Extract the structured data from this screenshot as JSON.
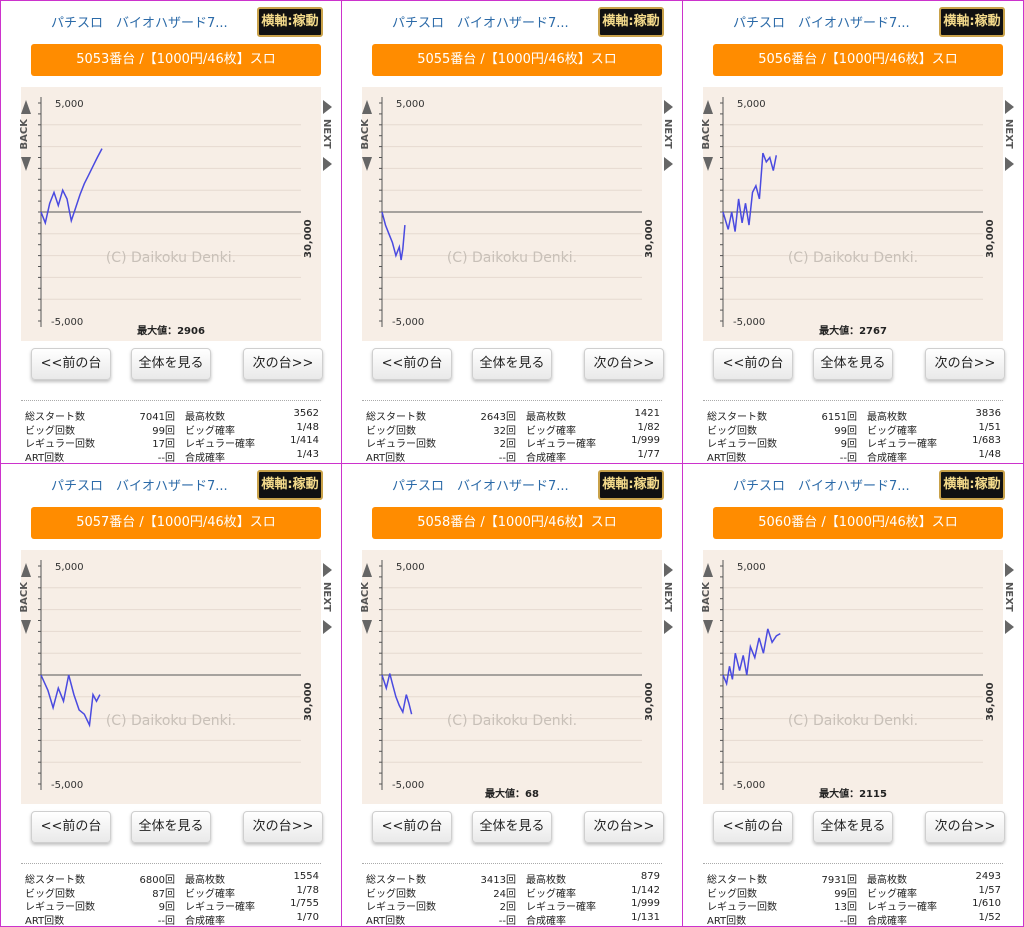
{
  "panels": [
    {
      "title": "パチスロ　バイオハザード7...",
      "axis_button": "横軸:稼動",
      "unit": "5053番台 /【1000円/46枚】スロ",
      "prev_button": "<<前の台",
      "all_button": "全体を見る",
      "next_button": "次の台>>",
      "back_label": "BACK",
      "next_label": "NEXT",
      "chart_data": {
        "type": "line",
        "ymax_label": "5,000",
        "ymin_label": "-5,000",
        "xmax_label": "30,000",
        "watermark": "(C) Daikoku Denki.",
        "max_label": "最大値：2906",
        "ylim": [
          -5000,
          5000
        ],
        "xlim": [
          0,
          30000
        ],
        "line_color": "#4a4ae0",
        "x": [
          0,
          500,
          1000,
          1500,
          2000,
          2500,
          3000,
          3200,
          3500,
          4000,
          4500,
          5000,
          5500,
          6000,
          6500,
          7041
        ],
        "y": [
          0,
          -500,
          400,
          900,
          300,
          1000,
          600,
          200,
          -400,
          200,
          800,
          1300,
          1700,
          2100,
          2500,
          2906
        ]
      },
      "stats": [
        [
          "総スタート数",
          "7041回",
          "最高枚数",
          "3562"
        ],
        [
          "ビッグ回数",
          "99回",
          "ビッグ確率",
          "1/48"
        ],
        [
          "レギュラー回数",
          "17回",
          "レギュラー確率",
          "1/414"
        ],
        [
          "ART回数",
          "--回",
          "合成確率",
          "1/43"
        ]
      ]
    },
    {
      "title": "パチスロ　バイオハザード7...",
      "axis_button": "横軸:稼動",
      "unit": "5055番台 /【1000円/46枚】スロ",
      "prev_button": "<<前の台",
      "all_button": "全体を見る",
      "next_button": "次の台>>",
      "back_label": "BACK",
      "next_label": "NEXT",
      "chart_data": {
        "type": "line",
        "ymax_label": "5,000",
        "ymin_label": "-5,000",
        "xmax_label": "30,000",
        "watermark": "(C) Daikoku Denki.",
        "max_label": "",
        "ylim": [
          -5000,
          5000
        ],
        "xlim": [
          0,
          30000
        ],
        "line_color": "#4a4ae0",
        "x": [
          0,
          400,
          800,
          1200,
          1600,
          2000,
          2200,
          2400,
          2643
        ],
        "y": [
          0,
          -600,
          -1000,
          -1400,
          -2000,
          -1600,
          -2200,
          -1700,
          -600
        ]
      },
      "stats": [
        [
          "総スタート数",
          "2643回",
          "最高枚数",
          "1421"
        ],
        [
          "ビッグ回数",
          "32回",
          "ビッグ確率",
          "1/82"
        ],
        [
          "レギュラー回数",
          "2回",
          "レギュラー確率",
          "1/999"
        ],
        [
          "ART回数",
          "--回",
          "合成確率",
          "1/77"
        ]
      ]
    },
    {
      "title": "パチスロ　バイオハザード7...",
      "axis_button": "横軸:稼動",
      "unit": "5056番台 /【1000円/46枚】スロ",
      "prev_button": "<<前の台",
      "all_button": "全体を見る",
      "next_button": "次の台>>",
      "back_label": "BACK",
      "next_label": "NEXT",
      "chart_data": {
        "type": "line",
        "ymax_label": "5,000",
        "ymin_label": "-5,000",
        "xmax_label": "30,000",
        "watermark": "(C) Daikoku Denki.",
        "max_label": "最大値：2767",
        "ylim": [
          -5000,
          5000
        ],
        "xlim": [
          0,
          30000
        ],
        "line_color": "#4a4ae0",
        "x": [
          0,
          600,
          1000,
          1400,
          1800,
          2200,
          2600,
          3000,
          3400,
          3800,
          4200,
          4600,
          5000,
          5400,
          5800,
          6151
        ],
        "y": [
          0,
          -800,
          0,
          -900,
          600,
          -500,
          400,
          -600,
          900,
          1200,
          600,
          2700,
          2300,
          2500,
          1900,
          2600
        ]
      },
      "stats": [
        [
          "総スタート数",
          "6151回",
          "最高枚数",
          "3836"
        ],
        [
          "ビッグ回数",
          "99回",
          "ビッグ確率",
          "1/51"
        ],
        [
          "レギュラー回数",
          "9回",
          "レギュラー確率",
          "1/683"
        ],
        [
          "ART回数",
          "--回",
          "合成確率",
          "1/48"
        ]
      ]
    },
    {
      "title": "パチスロ　バイオハザード7...",
      "axis_button": "横軸:稼動",
      "unit": "5057番台 /【1000円/46枚】スロ",
      "prev_button": "<<前の台",
      "all_button": "全体を見る",
      "next_button": "次の台>>",
      "back_label": "BACK",
      "next_label": "NEXT",
      "chart_data": {
        "type": "line",
        "ymax_label": "5,000",
        "ymin_label": "-5,000",
        "xmax_label": "30,000",
        "watermark": "(C) Daikoku Denki.",
        "max_label": "",
        "ylim": [
          -5000,
          5000
        ],
        "xlim": [
          0,
          30000
        ],
        "line_color": "#4a4ae0",
        "x": [
          0,
          800,
          1400,
          2000,
          2600,
          3200,
          3800,
          4400,
          5000,
          5600,
          6000,
          6400,
          6800
        ],
        "y": [
          0,
          -700,
          -1500,
          -600,
          -1200,
          0,
          -900,
          -1600,
          -1800,
          -2300,
          -900,
          -1200,
          -900
        ]
      },
      "stats": [
        [
          "総スタート数",
          "6800回",
          "最高枚数",
          "1554"
        ],
        [
          "ビッグ回数",
          "87回",
          "ビッグ確率",
          "1/78"
        ],
        [
          "レギュラー回数",
          "9回",
          "レギュラー確率",
          "1/755"
        ],
        [
          "ART回数",
          "--回",
          "合成確率",
          "1/70"
        ]
      ]
    },
    {
      "title": "パチスロ　バイオハザード7...",
      "axis_button": "横軸:稼動",
      "unit": "5058番台 /【1000円/46枚】スロ",
      "prev_button": "<<前の台",
      "all_button": "全体を見る",
      "next_button": "次の台>>",
      "back_label": "BACK",
      "next_label": "NEXT",
      "chart_data": {
        "type": "line",
        "ymax_label": "5,000",
        "ymin_label": "-5,000",
        "xmax_label": "30,000",
        "watermark": "(C) Daikoku Denki.",
        "max_label": "最大値：68",
        "ylim": [
          -5000,
          5000
        ],
        "xlim": [
          0,
          30000
        ],
        "line_color": "#4a4ae0",
        "x": [
          0,
          500,
          900,
          1200,
          1600,
          2000,
          2400,
          2800,
          3100,
          3413
        ],
        "y": [
          0,
          -600,
          68,
          -400,
          -1000,
          -1400,
          -1700,
          -900,
          -1300,
          -1800
        ]
      },
      "stats": [
        [
          "総スタート数",
          "3413回",
          "最高枚数",
          "879"
        ],
        [
          "ビッグ回数",
          "24回",
          "ビッグ確率",
          "1/142"
        ],
        [
          "レギュラー回数",
          "2回",
          "レギュラー確率",
          "1/999"
        ],
        [
          "ART回数",
          "--回",
          "合成確率",
          "1/131"
        ]
      ]
    },
    {
      "title": "パチスロ　バイオハザード7...",
      "axis_button": "横軸:稼動",
      "unit": "5060番台 /【1000円/46枚】スロ",
      "prev_button": "<<前の台",
      "all_button": "全体を見る",
      "next_button": "次の台>>",
      "back_label": "BACK",
      "next_label": "NEXT",
      "chart_data": {
        "type": "line",
        "ymax_label": "5,000",
        "ymin_label": "-5,000",
        "xmax_label": "36,000",
        "watermark": "(C) Daikoku Denki.",
        "max_label": "最大値：2115",
        "ylim": [
          -5000,
          5000
        ],
        "xlim": [
          0,
          36000
        ],
        "line_color": "#4a4ae0",
        "x": [
          0,
          500,
          900,
          1300,
          1700,
          2300,
          2800,
          3300,
          3800,
          4400,
          5000,
          5600,
          6200,
          6800,
          7400,
          7931
        ],
        "y": [
          0,
          -400,
          400,
          -200,
          1000,
          200,
          900,
          0,
          1300,
          800,
          1700,
          1000,
          2115,
          1500,
          1800,
          1900
        ]
      },
      "stats": [
        [
          "総スタート数",
          "7931回",
          "最高枚数",
          "2493"
        ],
        [
          "ビッグ回数",
          "99回",
          "ビッグ確率",
          "1/57"
        ],
        [
          "レギュラー回数",
          "13回",
          "レギュラー確率",
          "1/610"
        ],
        [
          "ART回数",
          "--回",
          "合成確率",
          "1/52"
        ]
      ]
    }
  ]
}
